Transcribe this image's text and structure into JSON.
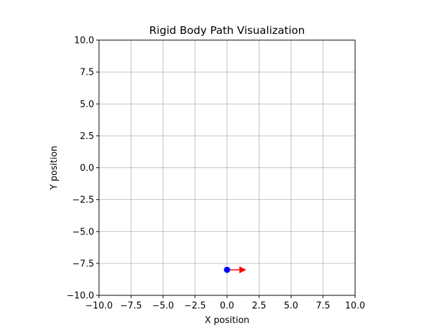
{
  "chart_data": {
    "type": "scatter",
    "title": "Rigid Body Path Visualization",
    "xlabel": "X position",
    "ylabel": "Y position",
    "xlim": [
      -10,
      10
    ],
    "ylim": [
      -10,
      10
    ],
    "x_ticks": [
      -10,
      -7.5,
      -5,
      -2.5,
      0,
      2.5,
      5,
      7.5,
      10
    ],
    "y_ticks": [
      -10,
      -7.5,
      -5,
      -2.5,
      0,
      2.5,
      5,
      7.5,
      10
    ],
    "x_tick_labels": [
      "−10.0",
      "−7.5",
      "−5.0",
      "−2.5",
      "0.0",
      "2.5",
      "5.0",
      "7.5",
      "10.0"
    ],
    "y_tick_labels": [
      "−10.0",
      "−7.5",
      "−5.0",
      "−2.5",
      "0.0",
      "2.5",
      "5.0",
      "7.5",
      "10.0"
    ],
    "grid": true,
    "points": [
      {
        "x": 0,
        "y": -8,
        "color": "#0000ff"
      }
    ],
    "arrows": [
      {
        "x": 0,
        "y": -8,
        "dx": 1.5,
        "dy": 0,
        "color": "#ff0000"
      }
    ]
  }
}
